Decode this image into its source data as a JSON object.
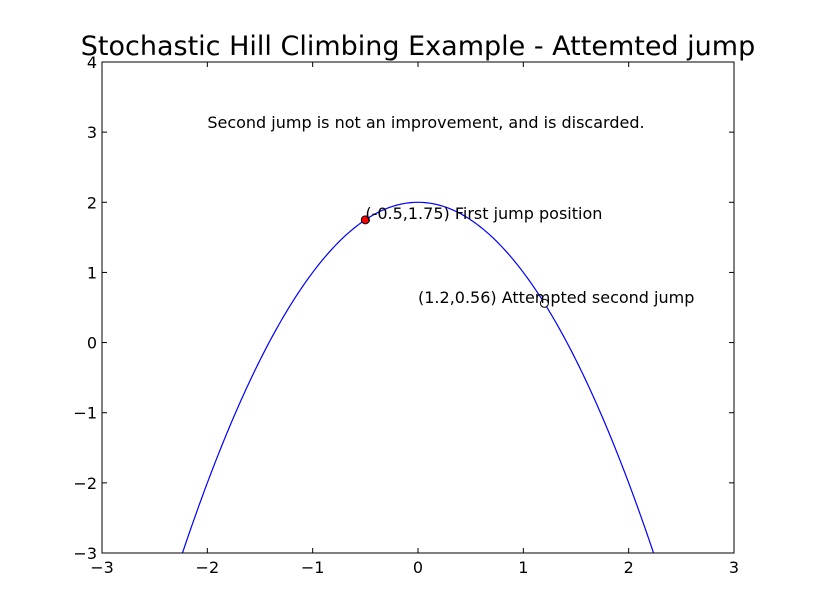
{
  "chart_data": {
    "type": "line",
    "title": "Stochastic Hill Climbing Example - Attemted jump",
    "xlabel": "",
    "ylabel": "",
    "xlim": [
      -3,
      3
    ],
    "ylim": [
      -3,
      4
    ],
    "grid": false,
    "x_ticks": [
      "−3",
      "−2",
      "−1",
      "0",
      "1",
      "2",
      "3"
    ],
    "y_ticks": [
      "−3",
      "−2",
      "−1",
      "0",
      "1",
      "2",
      "3",
      "4"
    ],
    "series": [
      {
        "function": "y = 2 - x^2",
        "x_range": [
          -2.236,
          2.236
        ],
        "color": "#0000ff"
      }
    ],
    "points": [
      {
        "x": -0.5,
        "y": 1.75,
        "color": "#ff0000",
        "label": "(-0.5,1.75) First jump position"
      },
      {
        "x": 1.2,
        "y": 0.56,
        "color": "#ffffff",
        "label": "(1.2,0.56) Attempted second jump"
      }
    ],
    "annotations": [
      {
        "text": "Second jump is not an improvement, and is discarded.",
        "x": -2.0,
        "y": 3.0
      }
    ]
  }
}
